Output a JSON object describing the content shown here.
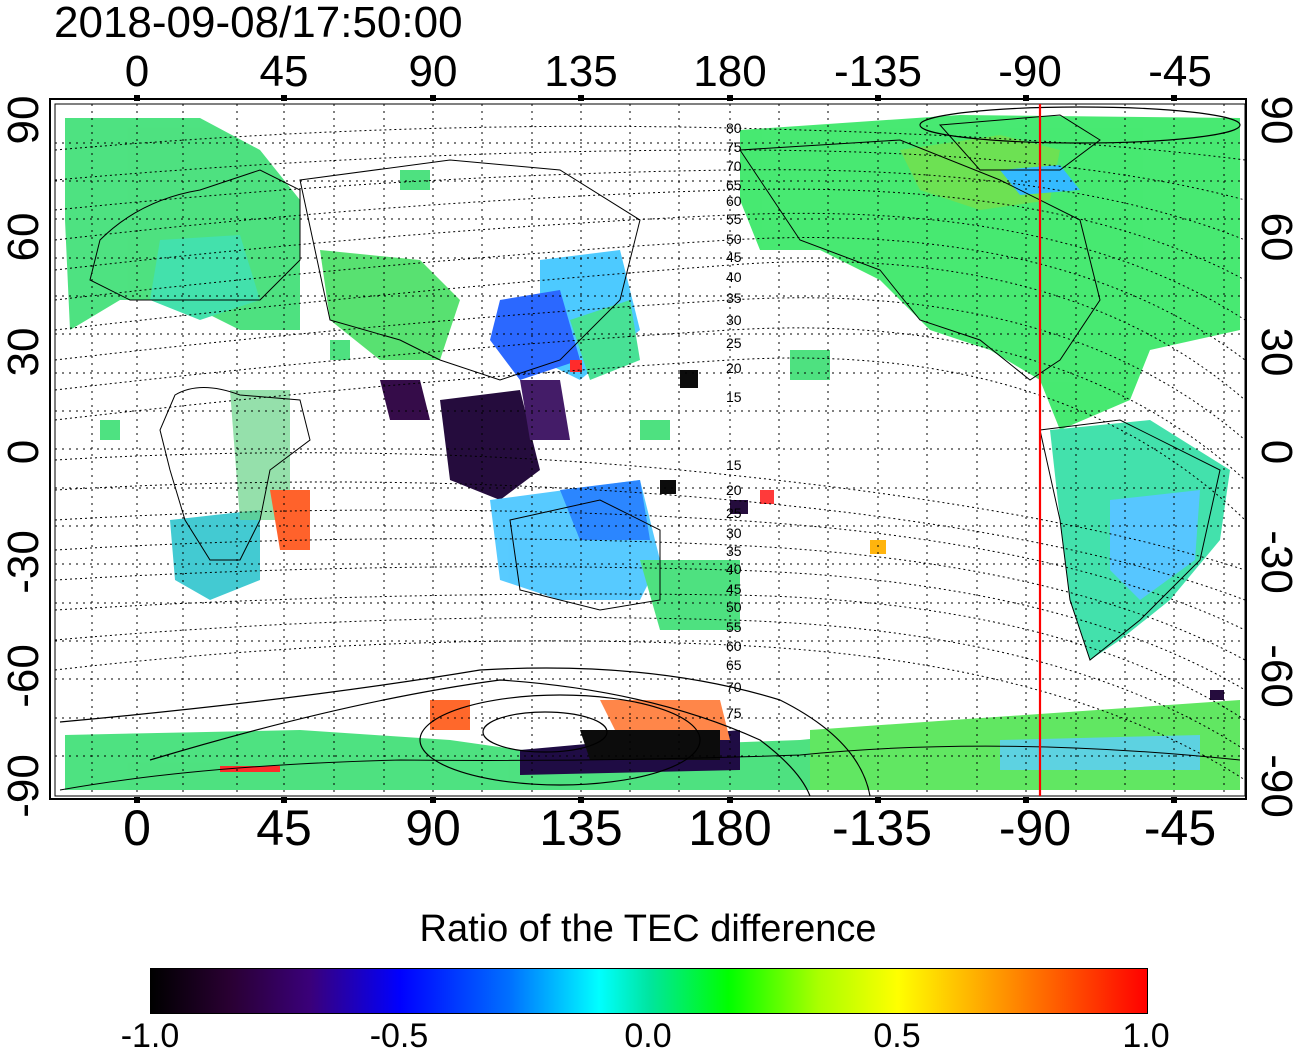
{
  "timestamp": "2018-09-08/17:50:00",
  "map": {
    "type": "geographic map with TEC ratio overlay",
    "lon_ticks_top": [
      "0",
      "45",
      "90",
      "135",
      "180",
      "-135",
      "-90",
      "-45"
    ],
    "lon_ticks_bottom": [
      "0",
      "45",
      "90",
      "135",
      "180",
      "-135",
      "-90",
      "-45"
    ],
    "lat_ticks_left": [
      "90",
      "60",
      "30",
      "0",
      "-30",
      "-60",
      "-90"
    ],
    "lat_ticks_right": [
      "90",
      "60",
      "30",
      "0",
      "-30",
      "-60",
      "-90"
    ],
    "lon_tick_values": [
      0,
      45,
      90,
      135,
      180,
      -135,
      -90,
      -45
    ],
    "lat_tick_values": [
      90,
      60,
      30,
      0,
      -30,
      -60,
      -90
    ],
    "magnetic_lat_labels_upper": [
      "80",
      "75",
      "70",
      "65",
      "60",
      "55",
      "50",
      "45",
      "40",
      "35",
      "30",
      "25",
      "20",
      "15"
    ],
    "magnetic_lat_labels_lower": [
      "15",
      "20",
      "25",
      "30",
      "35",
      "40",
      "45",
      "50",
      "55",
      "60",
      "65",
      "70",
      "75"
    ],
    "terminator_longitude": -90,
    "terminator_color": "#ff0000",
    "grid": "dotted"
  },
  "colorbar": {
    "title": "Ratio of the TEC difference",
    "ticks": [
      "-1.0",
      "-0.5",
      "0.0",
      "0.5",
      "1.0"
    ],
    "range": [
      -1.0,
      1.0
    ],
    "colors": [
      "#000000",
      "#0000ff",
      "#00ffff",
      "#00ff00",
      "#ffff00",
      "#ff0000"
    ]
  }
}
